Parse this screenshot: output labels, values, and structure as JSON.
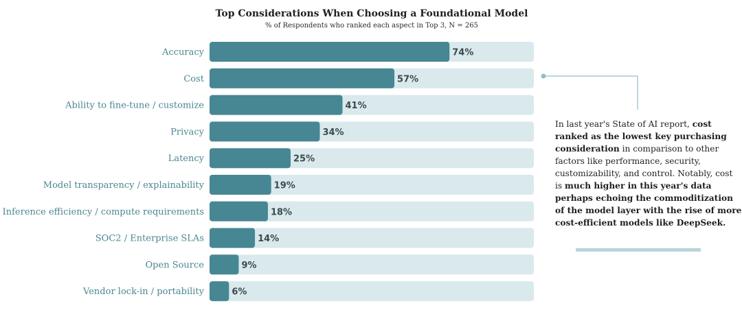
{
  "chart_data": {
    "type": "bar",
    "orientation": "horizontal",
    "title": "Top Considerations When Choosing a Foundational Model",
    "subtitle": "% of Respondents who ranked each aspect in Top 3, N = 265",
    "categories": [
      "Accuracy",
      "Cost",
      "Ability to fine-tune / customize",
      "Privacy",
      "Latency",
      "Model transparency / explainability",
      "Inference efficiency / compute requirements",
      "SOC2 / Enterprise SLAs",
      "Open Source",
      "Vendor lock-in / portability"
    ],
    "values": [
      74,
      57,
      41,
      34,
      25,
      19,
      18,
      14,
      9,
      6
    ],
    "value_labels": [
      "74%",
      "57%",
      "41%",
      "34%",
      "25%",
      "19%",
      "18%",
      "14%",
      "9%",
      "6%"
    ],
    "xlim": [
      0,
      100
    ],
    "grid": false,
    "colors": {
      "bar": "#468793",
      "track": "#d9e9ec",
      "label": "#4a8792",
      "accent": "#8fbfc6"
    }
  },
  "annotation": {
    "segments": [
      {
        "text": "In last year's State of AI report, ",
        "bold": false
      },
      {
        "text": "cost ranked as the lowest key purchasing consideration",
        "bold": true
      },
      {
        "text": " in comparison to other factors like performance, security, customizability, and control.  Notably, cost is ",
        "bold": false
      },
      {
        "text": "much higher in this year's data perhaps echoing the commoditization of the model layer with the rise of more cost-efficient models like DeepSeek.",
        "bold": true
      }
    ]
  }
}
